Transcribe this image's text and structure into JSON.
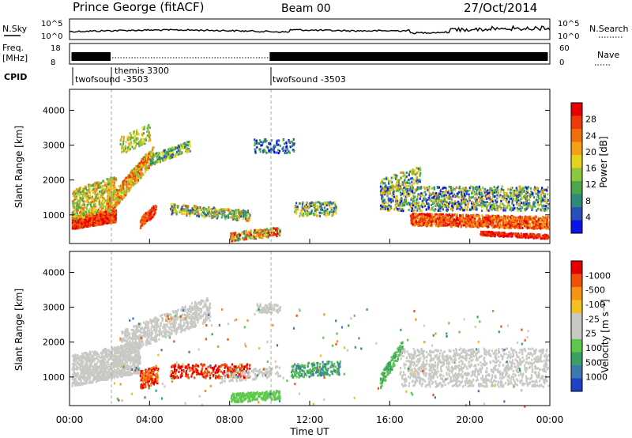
{
  "header": {
    "station": "Prince George (fitACF)",
    "beam": "Beam 00",
    "date": "27/Oct/2014"
  },
  "top_panels": {
    "nsky_label": "N.Sky",
    "nsky_ticks": [
      "10^5",
      "10^0"
    ],
    "nsearch_label": "N.Search",
    "nsearch_ticks": [
      "10^5",
      "10^0"
    ],
    "freq_label_1": "Freq.",
    "freq_label_2": "[MHz]",
    "freq_ticks": [
      "18",
      "8"
    ],
    "nave_label": "Nave",
    "nave_ticks": [
      "60",
      "0"
    ],
    "cpid_label": "CPID",
    "cpid_segments": [
      {
        "name": "twofsound -3503",
        "start_h": 0,
        "end_h": 2.0
      },
      {
        "name": "themis 3300",
        "start_h": 2.0,
        "end_h": 10.0
      },
      {
        "name": "twofsound -3503",
        "start_h": 10.0,
        "end_h": 24
      }
    ]
  },
  "chart_data": [
    {
      "type": "heatmap",
      "name": "Power",
      "ylabel": "Slant Range [km]",
      "ylim": [
        180,
        4600
      ],
      "yticks": [
        "1000",
        "2000",
        "3000",
        "4000"
      ],
      "xlim": [
        0,
        24
      ],
      "colorbar_label": "Power [dB]",
      "colorbar_ticks": [
        "4",
        "8",
        "12",
        "16",
        "20",
        "24",
        "28"
      ],
      "colorbar_colors": [
        "#1010e8",
        "#2850b8",
        "#2f8a7a",
        "#4aa84a",
        "#8cc83c",
        "#e6d21e",
        "#f5a014",
        "#f06e0a",
        "#ee3a08",
        "#e60000"
      ]
    },
    {
      "type": "heatmap",
      "name": "Velocity",
      "ylabel": "Slant Range [km]",
      "ylim": [
        180,
        4600
      ],
      "yticks": [
        "1000",
        "2000",
        "3000",
        "4000"
      ],
      "xlim": [
        0,
        24
      ],
      "colorbar_label": "Velocity [m s⁻¹]",
      "colorbar_ticks": [
        "1000",
        "500",
        "100",
        "25",
        "-25",
        "-100",
        "-500",
        "-1000"
      ],
      "colorbar_colors": [
        "#2040c8",
        "#3a7ab0",
        "#3aa064",
        "#5ec84a",
        "#c8c8c4",
        "#c8c8c4",
        "#f2c020",
        "#f59414",
        "#f0500a",
        "#e60000"
      ]
    }
  ],
  "x_axis": {
    "ticks": [
      "00:00",
      "04:00",
      "08:00",
      "12:00",
      "16:00",
      "20:00",
      "00:00"
    ],
    "label": "Time UT"
  }
}
